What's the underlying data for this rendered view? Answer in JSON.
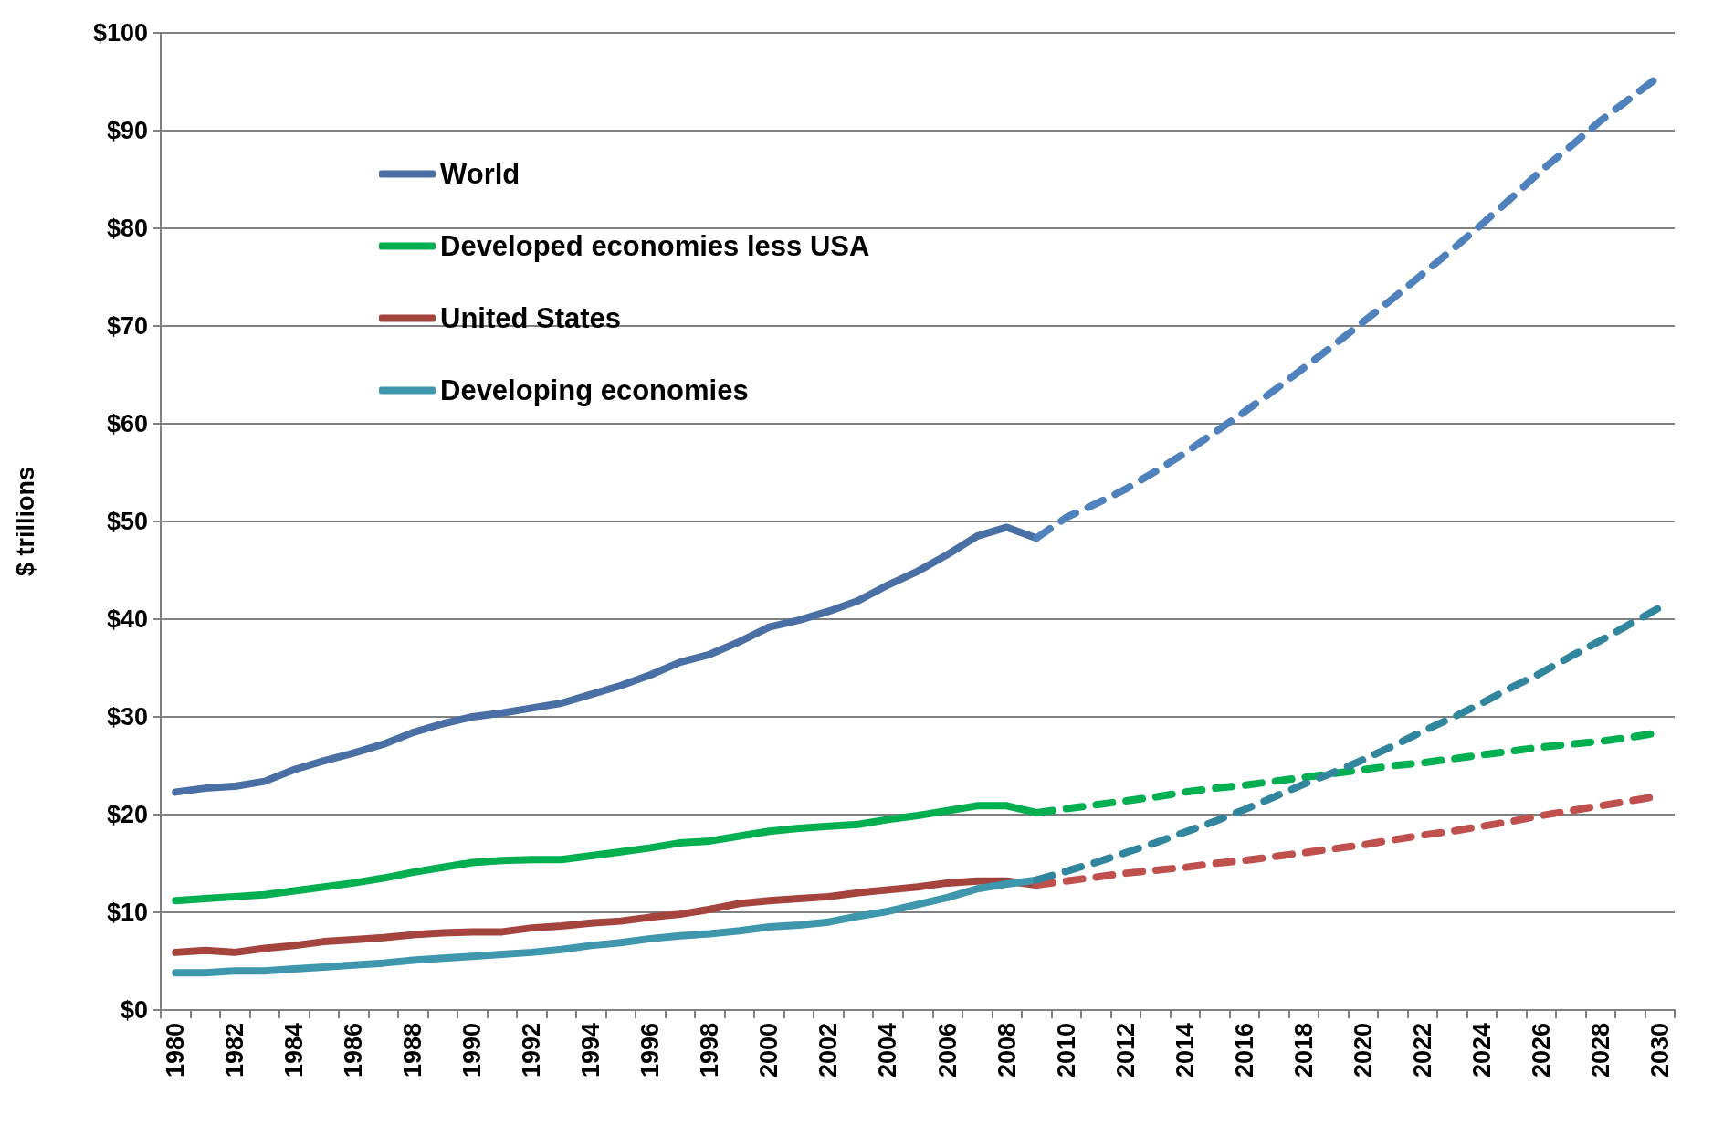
{
  "chart_data": {
    "type": "line",
    "ylabel": "$ trillions",
    "categories": [
      "1980",
      null,
      "1982",
      null,
      "1984",
      null,
      "1986",
      null,
      "1988",
      null,
      "1990",
      null,
      "1992",
      null,
      "1994",
      null,
      "1996",
      null,
      "1998",
      null,
      "2000",
      null,
      "2002",
      null,
      "2004",
      null,
      "2006",
      null,
      "2008",
      null,
      "2010",
      null,
      "2012",
      null,
      "2014",
      null,
      "2016",
      null,
      "2018",
      null,
      "2020",
      null,
      "2022",
      null,
      "2024",
      null,
      "2026",
      null,
      "2028",
      null,
      "2030"
    ],
    "ylim": [
      0,
      100
    ],
    "yticks": [
      {
        "value": 0,
        "label": "$0"
      },
      {
        "value": 10,
        "label": "$10"
      },
      {
        "value": 20,
        "label": "$20"
      },
      {
        "value": 30,
        "label": "$30"
      },
      {
        "value": 40,
        "label": "$40"
      },
      {
        "value": 50,
        "label": "$50"
      },
      {
        "value": 60,
        "label": "$60"
      },
      {
        "value": 70,
        "label": "$70"
      },
      {
        "value": 80,
        "label": "$80"
      },
      {
        "value": 90,
        "label": "$90"
      },
      {
        "value": 100,
        "label": "$100"
      }
    ],
    "grid": "y",
    "legend": "top left",
    "marker": "none",
    "series": [
      {
        "name": "World",
        "color": "#4a6fa5",
        "line_style": "solid",
        "values": [
          22.3,
          22.7,
          22.9,
          23.4,
          24.6,
          25.5,
          26.3,
          27.2,
          28.4,
          29.3,
          30.0,
          30.4,
          30.9,
          31.4,
          32.3,
          33.2,
          34.3,
          35.6,
          36.4,
          37.7,
          39.2,
          39.9,
          40.8,
          41.9,
          43.5,
          44.9,
          46.6,
          48.5,
          49.4,
          48.3,
          null,
          null,
          null,
          null,
          null,
          null,
          null,
          null,
          null,
          null,
          null,
          null,
          null,
          null,
          null,
          null,
          null,
          null,
          null,
          null,
          null
        ]
      },
      {
        "name": "Developed economies less USA",
        "color": "#00b050",
        "line_style": "solid",
        "values": [
          11.2,
          11.4,
          11.6,
          11.8,
          12.2,
          12.6,
          13.0,
          13.5,
          14.1,
          14.6,
          15.1,
          15.3,
          15.4,
          15.4,
          15.8,
          16.2,
          16.6,
          17.1,
          17.3,
          17.8,
          18.3,
          18.6,
          18.8,
          19.0,
          19.5,
          19.9,
          20.4,
          20.9,
          20.9,
          20.2,
          null,
          null,
          null,
          null,
          null,
          null,
          null,
          null,
          null,
          null,
          null,
          null,
          null,
          null,
          null,
          null,
          null,
          null,
          null,
          null,
          null
        ]
      },
      {
        "name": "United States",
        "color": "#a5433f",
        "line_style": "solid",
        "values": [
          5.9,
          6.1,
          5.9,
          6.3,
          6.6,
          7.0,
          7.2,
          7.4,
          7.7,
          7.9,
          8.0,
          8.0,
          8.4,
          8.6,
          8.9,
          9.1,
          9.5,
          9.8,
          10.3,
          10.9,
          11.2,
          11.4,
          11.6,
          12.0,
          12.3,
          12.6,
          13.0,
          13.2,
          13.2,
          12.8,
          null,
          null,
          null,
          null,
          null,
          null,
          null,
          null,
          null,
          null,
          null,
          null,
          null,
          null,
          null,
          null,
          null,
          null,
          null,
          null,
          null
        ]
      },
      {
        "name": "Developing economies",
        "color": "#3f97ad",
        "line_style": "solid",
        "values": [
          3.8,
          3.8,
          4.0,
          4.0,
          4.2,
          4.4,
          4.6,
          4.8,
          5.1,
          5.3,
          5.5,
          5.7,
          5.9,
          6.2,
          6.6,
          6.9,
          7.3,
          7.6,
          7.8,
          8.1,
          8.5,
          8.7,
          9.0,
          9.6,
          10.1,
          10.8,
          11.5,
          12.4,
          12.9,
          13.3,
          null,
          null,
          null,
          null,
          null,
          null,
          null,
          null,
          null,
          null,
          null,
          null,
          null,
          null,
          null,
          null,
          null,
          null,
          null,
          null,
          null
        ]
      },
      {
        "color": "#4f81bd",
        "line_style": "dashed",
        "values": [
          null,
          null,
          null,
          null,
          null,
          null,
          null,
          null,
          null,
          null,
          null,
          null,
          null,
          null,
          null,
          null,
          null,
          null,
          null,
          null,
          null,
          null,
          null,
          null,
          null,
          null,
          null,
          null,
          null,
          48.3,
          50.4,
          51.8,
          53.3,
          55.1,
          57.0,
          59.1,
          61.2,
          63.4,
          65.7,
          68.0,
          70.4,
          72.8,
          75.3,
          77.8,
          80.4,
          83.1,
          85.9,
          88.4,
          91.0,
          93.3,
          95.6
        ]
      },
      {
        "color": "#00b050",
        "line_style": "dashed",
        "values": [
          null,
          null,
          null,
          null,
          null,
          null,
          null,
          null,
          null,
          null,
          null,
          null,
          null,
          null,
          null,
          null,
          null,
          null,
          null,
          null,
          null,
          null,
          null,
          null,
          null,
          null,
          null,
          null,
          null,
          20.2,
          20.6,
          21.0,
          21.4,
          21.8,
          22.3,
          22.7,
          23.0,
          23.4,
          23.8,
          24.2,
          24.6,
          25.0,
          25.3,
          25.7,
          26.1,
          26.5,
          26.9,
          27.2,
          27.5,
          27.9,
          28.4
        ]
      },
      {
        "color": "#c0504d",
        "line_style": "dashed",
        "values": [
          null,
          null,
          null,
          null,
          null,
          null,
          null,
          null,
          null,
          null,
          null,
          null,
          null,
          null,
          null,
          null,
          null,
          null,
          null,
          null,
          null,
          null,
          null,
          null,
          null,
          null,
          null,
          null,
          null,
          12.8,
          13.2,
          13.6,
          14.0,
          14.3,
          14.6,
          15.0,
          15.3,
          15.7,
          16.1,
          16.5,
          16.9,
          17.4,
          17.9,
          18.3,
          18.8,
          19.3,
          19.9,
          20.4,
          20.9,
          21.4,
          21.9
        ]
      },
      {
        "color": "#31859c",
        "line_style": "dashed",
        "values": [
          null,
          null,
          null,
          null,
          null,
          null,
          null,
          null,
          null,
          null,
          null,
          null,
          null,
          null,
          null,
          null,
          null,
          null,
          null,
          null,
          null,
          null,
          null,
          null,
          null,
          null,
          null,
          null,
          null,
          13.3,
          14.2,
          15.1,
          16.1,
          17.1,
          18.2,
          19.3,
          20.5,
          21.8,
          23.1,
          24.3,
          25.6,
          27.0,
          28.5,
          29.9,
          31.4,
          33.0,
          34.5,
          36.2,
          37.8,
          39.5,
          41.2
        ]
      }
    ]
  }
}
